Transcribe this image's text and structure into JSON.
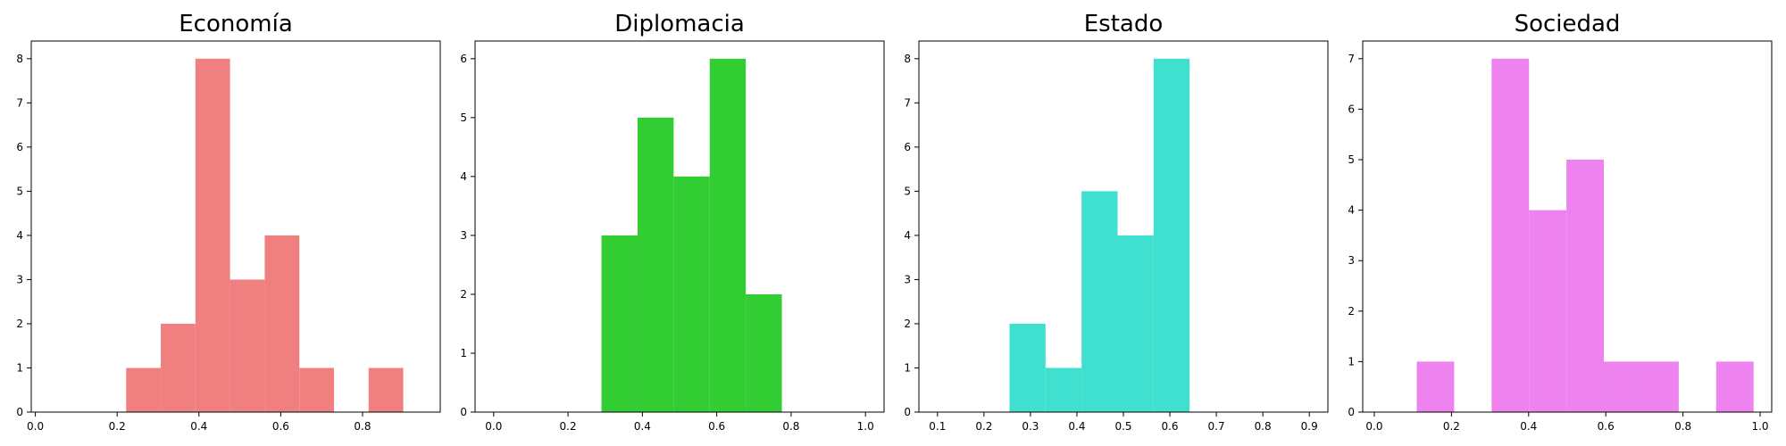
{
  "chart_data": [
    {
      "type": "bar",
      "title": "Economía",
      "color": "#f08080",
      "bin_edges": [
        0.222,
        0.3067,
        0.3914,
        0.4761,
        0.5608,
        0.6455,
        0.7302,
        0.8149,
        0.8996
      ],
      "bins": [
        {
          "x0": 0.222,
          "x1": 0.3067,
          "count": 1
        },
        {
          "x0": 0.3067,
          "x1": 0.3914,
          "count": 2
        },
        {
          "x0": 0.3914,
          "x1": 0.4761,
          "count": 8
        },
        {
          "x0": 0.4761,
          "x1": 0.5608,
          "count": 3
        },
        {
          "x0": 0.5608,
          "x1": 0.6455,
          "count": 4
        },
        {
          "x0": 0.6455,
          "x1": 0.7302,
          "count": 1
        },
        {
          "x0": 0.7302,
          "x1": 0.8149,
          "count": 0
        },
        {
          "x0": 0.8149,
          "x1": 0.8996,
          "count": 1
        }
      ],
      "xlim": [
        -0.01,
        0.99
      ],
      "ylim": [
        0,
        8.4
      ],
      "xticks": [
        "0.0",
        "0.2",
        "0.4",
        "0.6",
        "0.8"
      ],
      "xtick_values": [
        0.0,
        0.2,
        0.4,
        0.6,
        0.8
      ],
      "yticks": [
        "0",
        "1",
        "2",
        "3",
        "4",
        "5",
        "6",
        "7",
        "8"
      ],
      "ytick_values": [
        0,
        1,
        2,
        3,
        4,
        5,
        6,
        7,
        8
      ],
      "grid": false
    },
    {
      "type": "bar",
      "title": "Diplomacia",
      "color": "#32cd32",
      "bins": [
        {
          "x0": 0.29,
          "x1": 0.387,
          "count": 3
        },
        {
          "x0": 0.387,
          "x1": 0.484,
          "count": 5
        },
        {
          "x0": 0.484,
          "x1": 0.581,
          "count": 4
        },
        {
          "x0": 0.581,
          "x1": 0.678,
          "count": 6
        },
        {
          "x0": 0.678,
          "x1": 0.775,
          "count": 2
        }
      ],
      "xlim": [
        -0.05,
        1.05
      ],
      "ylim": [
        0,
        6.3
      ],
      "xticks": [
        "0.0",
        "0.2",
        "0.4",
        "0.6",
        "0.8",
        "1.0"
      ],
      "xtick_values": [
        0.0,
        0.2,
        0.4,
        0.6,
        0.8,
        1.0
      ],
      "yticks": [
        "0",
        "1",
        "2",
        "3",
        "4",
        "5",
        "6"
      ],
      "ytick_values": [
        0,
        1,
        2,
        3,
        4,
        5,
        6
      ],
      "grid": false
    },
    {
      "type": "bar",
      "title": "Estado",
      "color": "#40e0d0",
      "bins": [
        {
          "x0": 0.255,
          "x1": 0.3325,
          "count": 2
        },
        {
          "x0": 0.3325,
          "x1": 0.41,
          "count": 1
        },
        {
          "x0": 0.41,
          "x1": 0.4875,
          "count": 5
        },
        {
          "x0": 0.4875,
          "x1": 0.565,
          "count": 4
        },
        {
          "x0": 0.565,
          "x1": 0.6425,
          "count": 8
        }
      ],
      "xlim": [
        0.06,
        0.94
      ],
      "ylim": [
        0,
        8.4
      ],
      "xticks": [
        "0.1",
        "0.2",
        "0.3",
        "0.4",
        "0.5",
        "0.6",
        "0.7",
        "0.8",
        "0.9"
      ],
      "xtick_values": [
        0.1,
        0.2,
        0.3,
        0.4,
        0.5,
        0.6,
        0.7,
        0.8,
        0.9
      ],
      "yticks": [
        "0",
        "1",
        "2",
        "3",
        "4",
        "5",
        "6",
        "7",
        "8"
      ],
      "ytick_values": [
        0,
        1,
        2,
        3,
        4,
        5,
        6,
        7,
        8
      ],
      "grid": false
    },
    {
      "type": "bar",
      "title": "Sociedad",
      "color": "#ee82ee",
      "bins": [
        {
          "x0": 0.11,
          "x1": 0.207,
          "count": 1
        },
        {
          "x0": 0.207,
          "x1": 0.304,
          "count": 0
        },
        {
          "x0": 0.304,
          "x1": 0.401,
          "count": 7
        },
        {
          "x0": 0.401,
          "x1": 0.498,
          "count": 4
        },
        {
          "x0": 0.498,
          "x1": 0.595,
          "count": 5
        },
        {
          "x0": 0.595,
          "x1": 0.692,
          "count": 1
        },
        {
          "x0": 0.692,
          "x1": 0.789,
          "count": 1
        },
        {
          "x0": 0.789,
          "x1": 0.886,
          "count": 0
        },
        {
          "x0": 0.886,
          "x1": 0.983,
          "count": 1
        }
      ],
      "xlim": [
        -0.03,
        1.03
      ],
      "ylim": [
        0,
        7.35
      ],
      "xticks": [
        "0.0",
        "0.2",
        "0.4",
        "0.6",
        "0.8",
        "1.0"
      ],
      "xtick_values": [
        0.0,
        0.2,
        0.4,
        0.6,
        0.8,
        1.0
      ],
      "yticks": [
        "0",
        "1",
        "2",
        "3",
        "4",
        "5",
        "6",
        "7"
      ],
      "ytick_values": [
        0,
        1,
        2,
        3,
        4,
        5,
        6,
        7
      ],
      "grid": false
    }
  ]
}
